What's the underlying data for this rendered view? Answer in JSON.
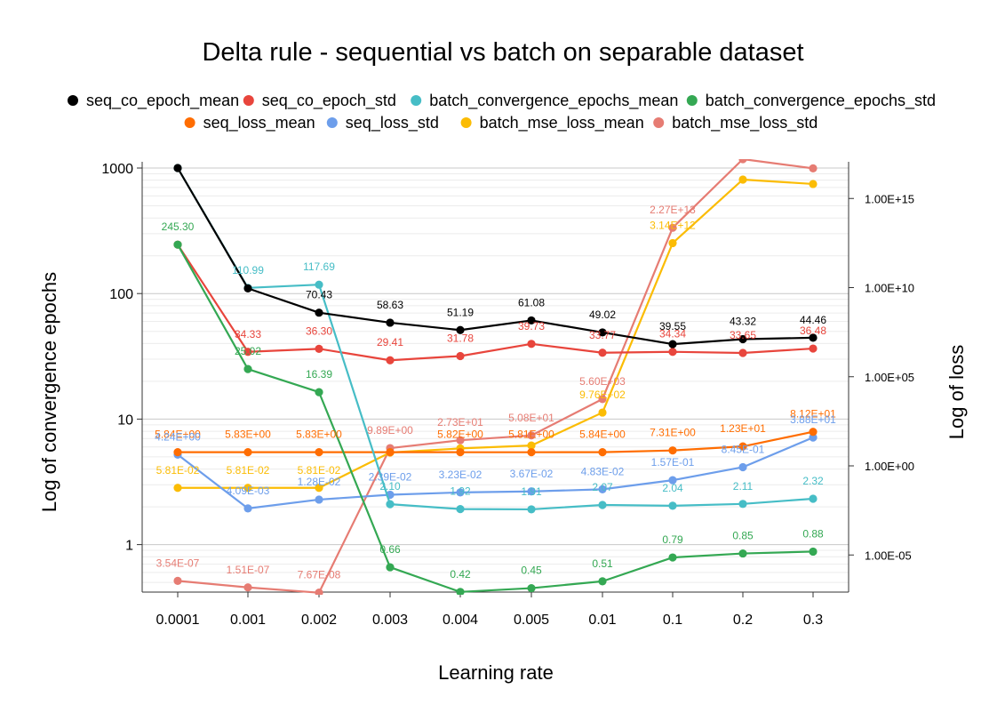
{
  "chart_data": {
    "type": "line",
    "title": "Delta rule - sequential vs batch on separable dataset",
    "xlabel": "Learning rate",
    "ylabel": "Log of convergence epochs",
    "y2label": "Log of loss",
    "categories": [
      "0.0001",
      "0.001",
      "0.002",
      "0.003",
      "0.004",
      "0.005",
      "0.01",
      "0.1",
      "0.2",
      "0.3"
    ],
    "y_scale": "log",
    "ylim": [
      0.42,
      1000
    ],
    "y_ticks": [
      "1",
      "10",
      "100",
      "1000"
    ],
    "y2_scale": "log",
    "y2lim": [
      1e-07,
      3e+17
    ],
    "y2_ticks": [
      "1.00E-05",
      "1.00E+00",
      "1.00E+05",
      "1.00E+10",
      "1.00E+15"
    ],
    "legend_position": "top",
    "grid": true,
    "series": [
      {
        "name": "seq_co_epoch_mean",
        "axis": "left",
        "color": "#000000",
        "values": [
          1000,
          110,
          70.43,
          58.63,
          51.19,
          61.08,
          49.02,
          39.55,
          43.32,
          44.46
        ],
        "labels": [
          "",
          "",
          "70.43",
          "58.63",
          "51.19",
          "61.08",
          "49.02",
          "39.55",
          "43.32",
          "44.46"
        ]
      },
      {
        "name": "seq_co_epoch_std",
        "axis": "left",
        "color": "#e8453c",
        "values": [
          245.3,
          34.33,
          36.3,
          29.41,
          31.78,
          39.73,
          33.77,
          34.34,
          33.65,
          36.48
        ],
        "labels": [
          "",
          "34.33",
          "36.30",
          "29.41",
          "31.78",
          "39.73",
          "33.77",
          "34.34",
          "33.65",
          "36.48"
        ]
      },
      {
        "name": "batch_convergence_epochs_mean",
        "axis": "left",
        "color": "#46bdc6",
        "values": [
          1000,
          110.99,
          117.69,
          2.1,
          1.92,
          1.91,
          2.07,
          2.04,
          2.11,
          2.32
        ],
        "labels": [
          "",
          "110.99",
          "117.69",
          "2.10",
          "1.92",
          "1.91",
          "2.07",
          "2.04",
          "2.11",
          "2.32"
        ]
      },
      {
        "name": "batch_convergence_epochs_std",
        "axis": "left",
        "color": "#34a853",
        "values": [
          245.3,
          25.02,
          16.39,
          0.66,
          0.42,
          0.45,
          0.51,
          0.79,
          0.85,
          0.88
        ],
        "labels": [
          "245.30",
          "25.02",
          "16.39",
          "0.66",
          "0.42",
          "0.45",
          "0.51",
          "0.79",
          "0.85",
          "0.88"
        ]
      },
      {
        "name": "seq_loss_mean",
        "axis": "right",
        "color": "#ff6d01",
        "values": [
          5.84,
          5.83,
          5.83,
          5.83,
          5.82,
          5.81,
          5.84,
          7.31,
          12.3,
          81.2
        ],
        "labels": [
          "5.84E+00",
          "5.83E+00",
          "5.83E+00",
          "",
          "5.82E+00",
          "5.81E+00",
          "5.84E+00",
          "7.31E+00",
          "1.23E+01",
          "8.12E+01"
        ]
      },
      {
        "name": "seq_loss_std",
        "axis": "right",
        "color": "#6d9eeb",
        "values": [
          4.24,
          0.00409,
          0.0128,
          0.0239,
          0.0323,
          0.0367,
          0.0483,
          0.157,
          0.845,
          38.8
        ],
        "labels": [
          "4.24E+00",
          "4.09E-03",
          "1.28E-02",
          "2.39E-02",
          "3.23E-02",
          "3.67E-02",
          "4.83E-02",
          "1.57E-01",
          "8.45E-01",
          "3.88E+01"
        ]
      },
      {
        "name": "batch_mse_loss_mean",
        "axis": "right",
        "color": "#fbbc04",
        "values": [
          0.0581,
          0.0581,
          0.0581,
          5.6,
          9.5,
          13.8,
          976,
          3140000000000.0,
          1.15e+16,
          6500000000000000.0
        ],
        "labels": [
          "5.81E-02",
          "5.81E-02",
          "5.81E-02",
          "",
          "",
          "",
          "9.76E+02",
          "3.14E+12",
          "",
          ""
        ]
      },
      {
        "name": "batch_mse_loss_std",
        "axis": "right",
        "color": "#e67c73",
        "values": [
          3.54e-07,
          1.51e-07,
          7.67e-08,
          9.89,
          27.3,
          50.8,
          5600,
          22700000000000.0,
          1.7e+17,
          4.9e+16
        ],
        "labels": [
          "3.54E-07",
          "1.51E-07",
          "7.67E-08",
          "9.89E+00",
          "2.73E+01",
          "5.08E+01",
          "5.60E+03",
          "2.27E+13",
          "",
          ""
        ]
      }
    ]
  }
}
